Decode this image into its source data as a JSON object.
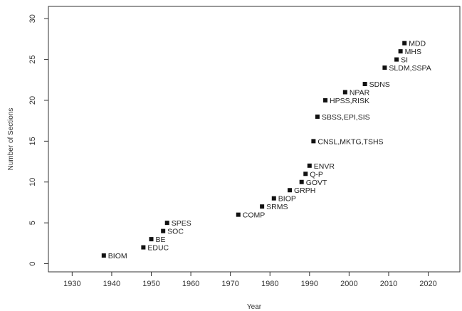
{
  "chart_data": {
    "type": "scatter",
    "xlabel": "Year",
    "ylabel": "Number of Sections",
    "xlim": [
      1924,
      2028
    ],
    "ylim": [
      -1,
      31.5
    ],
    "xticks": [
      1930,
      1940,
      1950,
      1960,
      1970,
      1980,
      1990,
      2000,
      2010,
      2020
    ],
    "yticks": [
      0,
      5,
      10,
      15,
      20,
      25,
      30
    ],
    "grid": false,
    "marker_color": "#111111",
    "points": [
      {
        "x": 1938,
        "y": 1,
        "label": "BIOM"
      },
      {
        "x": 1948,
        "y": 2,
        "label": "EDUC"
      },
      {
        "x": 1950,
        "y": 3,
        "label": "BE"
      },
      {
        "x": 1953,
        "y": 4,
        "label": "SOC"
      },
      {
        "x": 1954,
        "y": 5,
        "label": "SPES"
      },
      {
        "x": 1972,
        "y": 6,
        "label": "COMP"
      },
      {
        "x": 1978,
        "y": 7,
        "label": "SRMS"
      },
      {
        "x": 1981,
        "y": 8,
        "label": "BIOP"
      },
      {
        "x": 1985,
        "y": 9,
        "label": "GRPH"
      },
      {
        "x": 1988,
        "y": 10,
        "label": "GOVT"
      },
      {
        "x": 1989,
        "y": 11,
        "label": "Q-P"
      },
      {
        "x": 1990,
        "y": 12,
        "label": "ENVR"
      },
      {
        "x": 1991,
        "y": 15,
        "label": "CNSL,MKTG,TSHS"
      },
      {
        "x": 1992,
        "y": 18,
        "label": "SBSS,EPI,SIS"
      },
      {
        "x": 1994,
        "y": 20,
        "label": "HPSS,RISK"
      },
      {
        "x": 1999,
        "y": 21,
        "label": "NPAR"
      },
      {
        "x": 2004,
        "y": 22,
        "label": "SDNS"
      },
      {
        "x": 2009,
        "y": 24,
        "label": "SLDM,SSPA"
      },
      {
        "x": 2012,
        "y": 25,
        "label": "SI"
      },
      {
        "x": 2013,
        "y": 26,
        "label": "MHS"
      },
      {
        "x": 2014,
        "y": 27,
        "label": "MDD"
      }
    ]
  }
}
